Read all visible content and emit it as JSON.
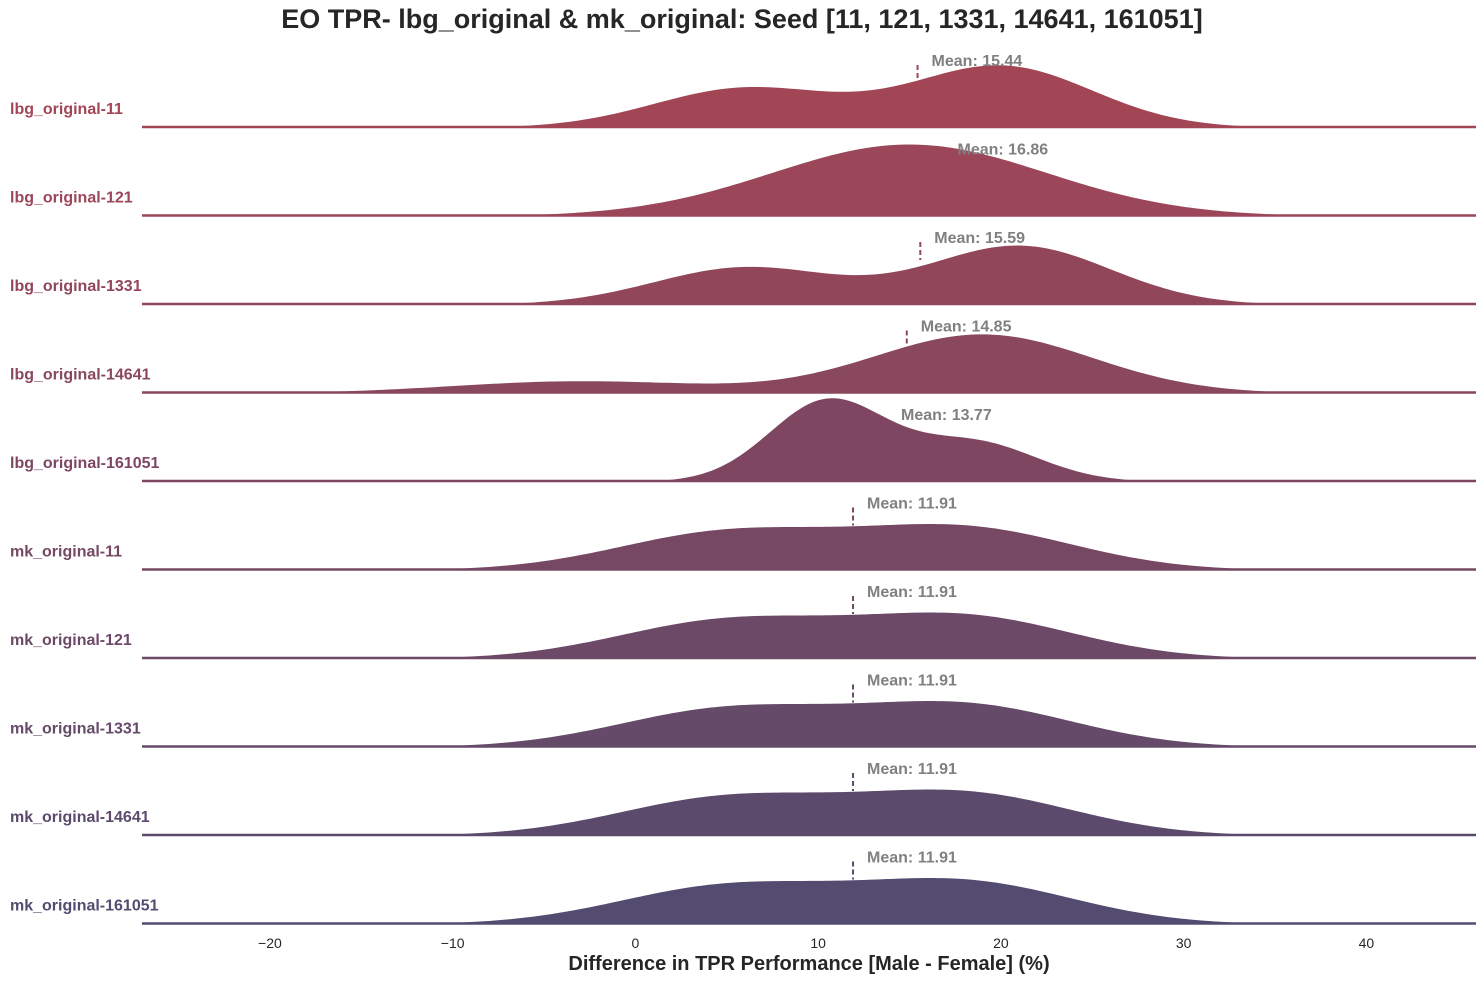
{
  "chart_data": {
    "type": "ridgeline",
    "title": "EO TPR- lbg_original & mk_original: Seed [11, 121, 1331, 14641, 161051]",
    "xlabel": "Difference in TPR Performance [Male - Female] (%)",
    "xlim": [
      -27,
      46
    ],
    "xticks": [
      -20,
      -10,
      0,
      10,
      20,
      30,
      40
    ],
    "xtick_labels": [
      "−20",
      "−10",
      "0",
      "10",
      "20",
      "30",
      "40"
    ],
    "grid": false,
    "mean_prefix": "Mean: ",
    "series": [
      {
        "name": "lbg_original-11",
        "color": "#a24656",
        "mean": 15.44,
        "mean_label": "15.44",
        "peaks": [
          {
            "mu": 6,
            "sigma": 5,
            "amp": 0.55
          },
          {
            "mu": 20,
            "sigma": 5,
            "amp": 0.86
          }
        ]
      },
      {
        "name": "lbg_original-121",
        "color": "#9b4759",
        "mean": 16.86,
        "mean_label": "16.86",
        "peaks": [
          {
            "mu": 15,
            "sigma": 7.5,
            "amp": 1.0
          }
        ]
      },
      {
        "name": "lbg_original-1331",
        "color": "#91465a",
        "mean": 15.59,
        "mean_label": "15.59",
        "peaks": [
          {
            "mu": 6,
            "sigma": 5,
            "amp": 0.52
          },
          {
            "mu": 21,
            "sigma": 5,
            "amp": 0.82
          }
        ]
      },
      {
        "name": "lbg_original-14641",
        "color": "#89485d",
        "mean": 14.85,
        "mean_label": "14.85",
        "peaks": [
          {
            "mu": -3,
            "sigma": 7,
            "amp": 0.17
          },
          {
            "mu": 19,
            "sigma": 6,
            "amp": 0.82
          }
        ]
      },
      {
        "name": "lbg_original-161051",
        "color": "#7e4660",
        "mean": 13.77,
        "mean_label": "13.77",
        "peaks": [
          {
            "mu": 10.5,
            "sigma": 3.2,
            "amp": 1.12
          },
          {
            "mu": 18.5,
            "sigma": 3.5,
            "amp": 0.55
          }
        ]
      },
      {
        "name": "mk_original-11",
        "color": "#764864",
        "mean": 11.91,
        "mean_label": "11.91",
        "peaks": [
          {
            "mu": 5,
            "sigma": 6,
            "amp": 0.52
          },
          {
            "mu": 18,
            "sigma": 6,
            "amp": 0.58
          }
        ]
      },
      {
        "name": "mk_original-121",
        "color": "#6c4967",
        "mean": 11.91,
        "mean_label": "11.91",
        "peaks": [
          {
            "mu": 5,
            "sigma": 6,
            "amp": 0.52
          },
          {
            "mu": 18,
            "sigma": 6,
            "amp": 0.58
          }
        ]
      },
      {
        "name": "mk_original-1331",
        "color": "#654a69",
        "mean": 11.91,
        "mean_label": "11.91",
        "peaks": [
          {
            "mu": 5,
            "sigma": 6,
            "amp": 0.52
          },
          {
            "mu": 18,
            "sigma": 6,
            "amp": 0.58
          }
        ]
      },
      {
        "name": "mk_original-14641",
        "color": "#5c4a6c",
        "mean": 11.91,
        "mean_label": "11.91",
        "peaks": [
          {
            "mu": 5,
            "sigma": 6,
            "amp": 0.52
          },
          {
            "mu": 18,
            "sigma": 6,
            "amp": 0.58
          }
        ]
      },
      {
        "name": "mk_original-161051",
        "color": "#534c70",
        "mean": 11.91,
        "mean_label": "11.91",
        "peaks": [
          {
            "mu": 5,
            "sigma": 6,
            "amp": 0.52
          },
          {
            "mu": 18,
            "sigma": 6,
            "amp": 0.58
          }
        ]
      }
    ]
  }
}
